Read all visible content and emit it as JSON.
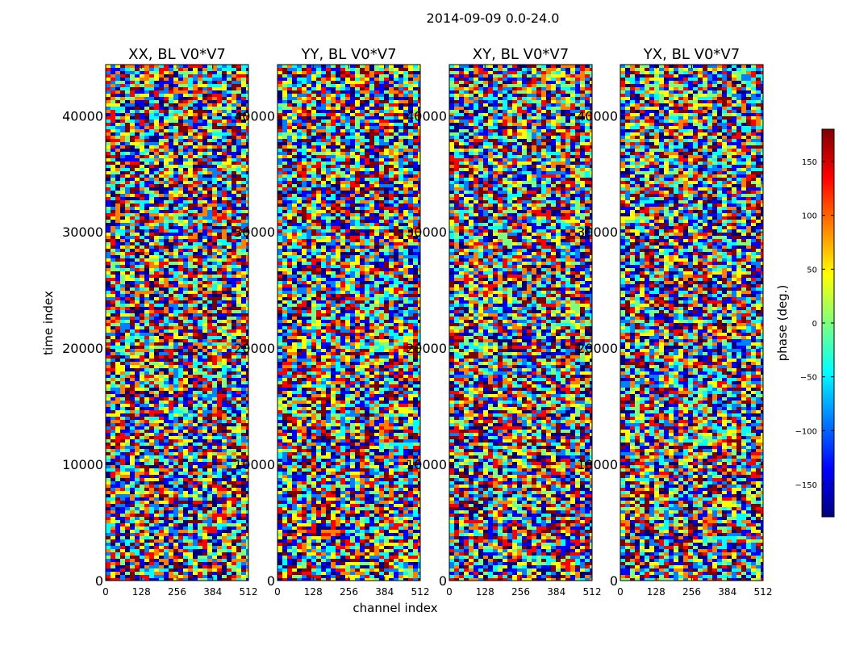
{
  "suptitle": "2014-09-09 0.0-24.0",
  "colors": {
    "frame": "#000000",
    "jet": [
      "#00007f",
      "#0000ff",
      "#007fff",
      "#00ffff",
      "#7fff7f",
      "#ffff00",
      "#ff7f00",
      "#ff0000",
      "#7f0000"
    ]
  },
  "chart_data": {
    "type": "heatmap",
    "xlabel": "channel index",
    "ylabel": "time index",
    "xlim": [
      0,
      512
    ],
    "ylim": [
      0,
      44400
    ],
    "xticks": [
      0,
      128,
      256,
      384,
      512
    ],
    "yticks": [
      0,
      10000,
      20000,
      30000,
      40000
    ],
    "panels": [
      {
        "title": "XX, BL V0*V7"
      },
      {
        "title": "YY, BL V0*V7"
      },
      {
        "title": "XY, BL V0*V7"
      },
      {
        "title": "YX, BL V0*V7"
      }
    ],
    "colorbar": {
      "label": "phase (deg.)",
      "range": [
        -180,
        180
      ],
      "ticks": [
        -150,
        -100,
        -50,
        0,
        50,
        100,
        150
      ]
    }
  }
}
